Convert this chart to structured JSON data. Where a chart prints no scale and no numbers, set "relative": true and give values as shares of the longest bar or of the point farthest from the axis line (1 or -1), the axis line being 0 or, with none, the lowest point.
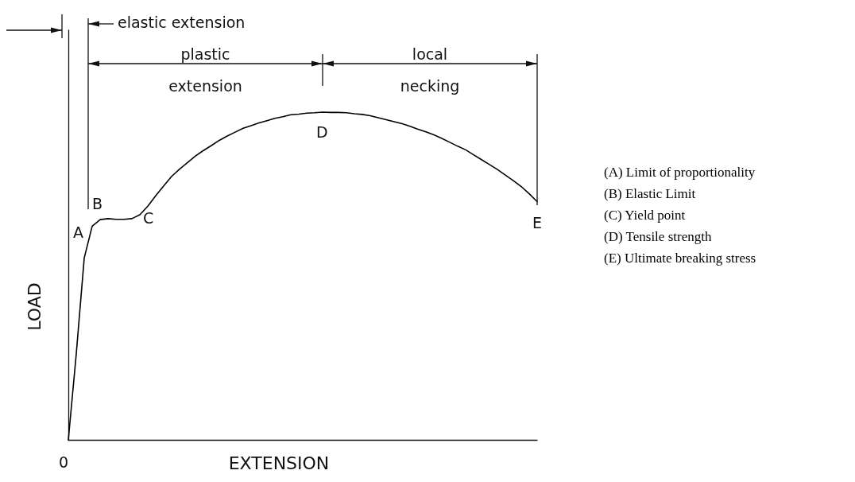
{
  "chart_data": {
    "type": "line",
    "relative": true,
    "xlabel": "EXTENSION",
    "ylabel": "LOAD",
    "marker": "none",
    "line_style": "solid",
    "categories": [
      null,
      null,
      null,
      null,
      null,
      null,
      null,
      null,
      null,
      null,
      null,
      null,
      null,
      null,
      null,
      null,
      null,
      null,
      null,
      null,
      null,
      null,
      null,
      null,
      null,
      null,
      null,
      null,
      null,
      null,
      null,
      null,
      null,
      null,
      null,
      null,
      null,
      null,
      null,
      null,
      null,
      null,
      null,
      null,
      null,
      null,
      null,
      null,
      null,
      null,
      null,
      null,
      null,
      null,
      null,
      null,
      null,
      null,
      null,
      null
    ],
    "series": [
      {
        "color": "#000000",
        "values": [
          0,
          0.263,
          0.555,
          0.652,
          0.672,
          0.675,
          0.673,
          0.673,
          0.675,
          0.687,
          0.713,
          0.745,
          0.775,
          0.804,
          0.826,
          0.846,
          0.866,
          0.883,
          0.898,
          0.914,
          0.927,
          0.939,
          0.951,
          0.959,
          0.967,
          0.974,
          0.981,
          0.986,
          0.992,
          0.994,
          0.997,
          0.998,
          1,
          0.999,
          0.999,
          0.998,
          0.995,
          0.993,
          0.989,
          0.983,
          0.977,
          0.971,
          0.965,
          0.957,
          0.948,
          0.94,
          0.931,
          0.92,
          0.908,
          0.896,
          0.885,
          0.87,
          0.855,
          0.84,
          0.825,
          0.808,
          0.791,
          0.773,
          0.751,
          0.727
        ]
      }
    ],
    "annotations": [
      "A",
      "B",
      "C",
      "D",
      "E",
      "0",
      "elastic extension",
      "plastic extension",
      "local necking",
      "(A) Limit of proportionality",
      "(B) Elastic Limit",
      "(C) Yield point",
      "(D) Tensile strength",
      "(E) Ultimate breaking stress"
    ]
  }
}
